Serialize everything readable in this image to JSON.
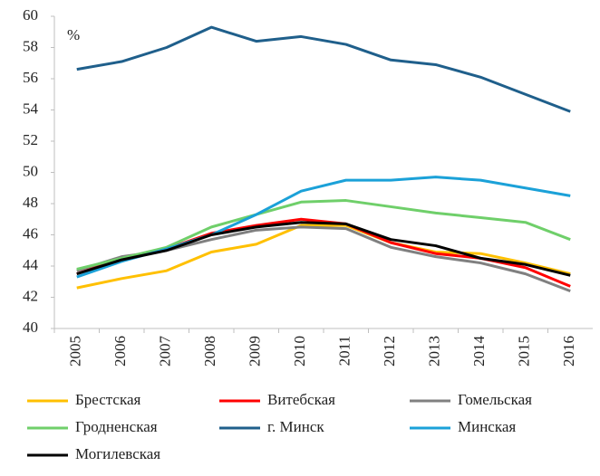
{
  "chart_data": {
    "type": "line",
    "annotation": "%",
    "categories": [
      "2005",
      "2006",
      "2007",
      "2008",
      "2009",
      "2010",
      "2011",
      "2012",
      "2013",
      "2014",
      "2015",
      "2016"
    ],
    "series": [
      {
        "name": "Брестская",
        "color": "#ffc000",
        "values": [
          42.6,
          43.2,
          43.7,
          44.9,
          45.4,
          46.6,
          46.6,
          45.5,
          44.9,
          44.8,
          44.2,
          43.5
        ]
      },
      {
        "name": "Витебская",
        "color": "#ff0000",
        "values": [
          43.5,
          44.5,
          45.1,
          46.1,
          46.6,
          47.0,
          46.7,
          45.5,
          44.8,
          44.5,
          43.9,
          42.7
        ]
      },
      {
        "name": "Гомельская",
        "color": "#808080",
        "values": [
          43.7,
          44.6,
          45.0,
          45.7,
          46.3,
          46.5,
          46.4,
          45.2,
          44.6,
          44.2,
          43.5,
          42.4
        ]
      },
      {
        "name": "Гродненская",
        "color": "#6fcf6a",
        "values": [
          43.8,
          44.5,
          45.2,
          46.5,
          47.3,
          48.1,
          48.2,
          47.8,
          47.4,
          47.1,
          46.8,
          45.7
        ]
      },
      {
        "name": "г. Минск",
        "color": "#1f5f8b",
        "values": [
          56.6,
          57.1,
          58.0,
          59.3,
          58.4,
          58.7,
          58.2,
          57.2,
          56.9,
          56.1,
          55.0,
          53.9
        ]
      },
      {
        "name": "Минская",
        "color": "#1ba1d8",
        "values": [
          43.3,
          44.3,
          45.1,
          46.0,
          47.3,
          48.8,
          49.5,
          49.5,
          49.7,
          49.5,
          49.0,
          48.5
        ]
      },
      {
        "name": "Могилевская",
        "color": "#000000",
        "values": [
          43.5,
          44.4,
          45.0,
          46.0,
          46.5,
          46.8,
          46.7,
          45.7,
          45.3,
          44.5,
          44.1,
          43.4
        ]
      }
    ],
    "ylim": [
      40,
      60
    ],
    "yticks": [
      40,
      42,
      44,
      46,
      48,
      50,
      52,
      54,
      56,
      58,
      60
    ],
    "grid": false,
    "legend": "bottom"
  }
}
